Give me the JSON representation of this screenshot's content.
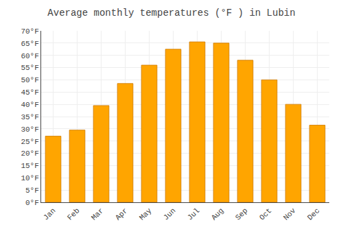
{
  "chart_data": {
    "type": "bar",
    "title": "Average monthly temperatures (°F ) in Lubin",
    "categories": [
      "Jan",
      "Feb",
      "Mar",
      "Apr",
      "May",
      "Jun",
      "Jul",
      "Aug",
      "Sep",
      "Oct",
      "Nov",
      "Dec"
    ],
    "values": [
      27,
      29.5,
      39.5,
      48.5,
      56,
      62.5,
      65.5,
      65,
      58,
      50,
      40,
      31.5
    ],
    "color": "#FFA500",
    "ylim": [
      0,
      70
    ],
    "yticks": [
      {
        "value": 0,
        "label": "0°F"
      },
      {
        "value": 5,
        "label": "5°F"
      },
      {
        "value": 10,
        "label": "10°F"
      },
      {
        "value": 15,
        "label": "15°F"
      },
      {
        "value": 20,
        "label": "20°F"
      },
      {
        "value": 25,
        "label": "25°F"
      },
      {
        "value": 30,
        "label": "30°F"
      },
      {
        "value": 35,
        "label": "35°F"
      },
      {
        "value": 40,
        "label": "40°F"
      },
      {
        "value": 45,
        "label": "45°F"
      },
      {
        "value": 50,
        "label": "50°F"
      },
      {
        "value": 55,
        "label": "55°F"
      },
      {
        "value": 60,
        "label": "60°F"
      },
      {
        "value": 65,
        "label": "65°F"
      },
      {
        "value": 70,
        "label": "70°F"
      }
    ],
    "grid": true
  }
}
